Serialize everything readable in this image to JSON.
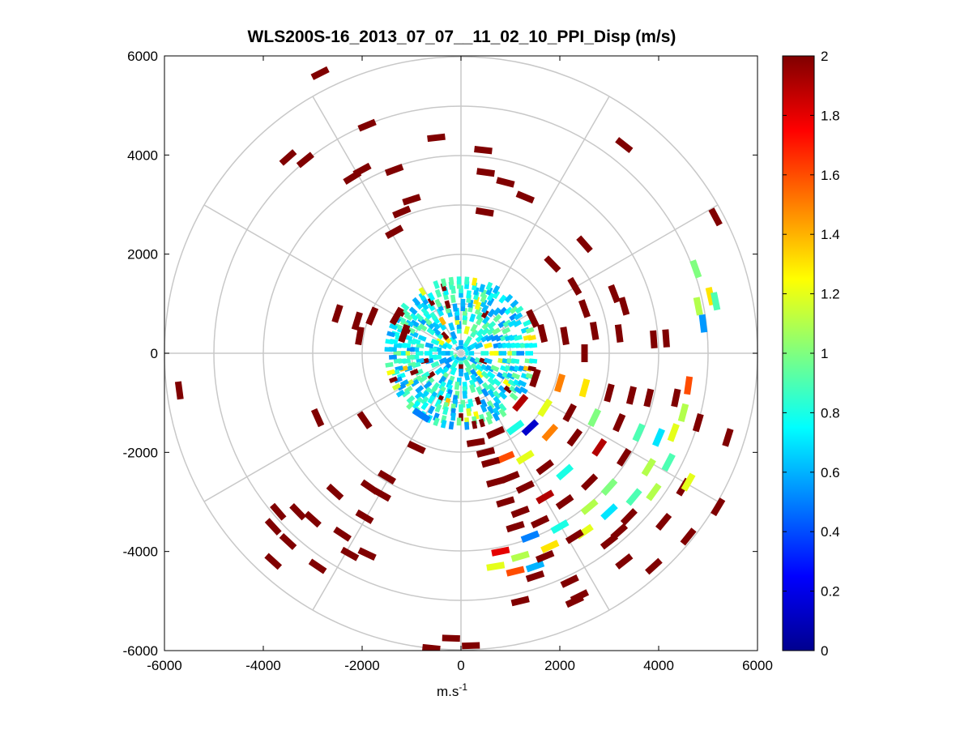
{
  "chart_data": {
    "type": "heatmap",
    "subtype": "polar-ppi",
    "title": "WLS200S-16_2013_07_07__11_02_10_PPI_Disp (m/s)",
    "xlabel_base": "m.s",
    "xlabel_exp": "-1",
    "ylabel": "",
    "xlim": [
      -6000,
      6000
    ],
    "ylim": [
      -6000,
      6000
    ],
    "xticks": [
      "-6000",
      "-4000",
      "-2000",
      "0",
      "2000",
      "4000",
      "6000"
    ],
    "yticks": [
      "6000",
      "4000",
      "2000",
      "0",
      "-2000",
      "-4000",
      "-6000"
    ],
    "xtick_values": [
      -6000,
      -4000,
      -2000,
      0,
      2000,
      4000,
      6000
    ],
    "ytick_values": [
      6000,
      4000,
      2000,
      0,
      -2000,
      -4000,
      -6000
    ],
    "polar_grid": {
      "range_rings": [
        1000,
        2000,
        3000,
        4000,
        5000,
        6000
      ],
      "radial_spokes_deg": [
        0,
        30,
        60,
        90,
        120,
        150,
        180,
        210,
        240,
        270,
        300,
        330
      ],
      "grid": "on"
    },
    "colorbar": {
      "min": 0,
      "max": 2,
      "ticks": [
        "2",
        "1.8",
        "1.6",
        "1.4",
        "1.2",
        "1",
        "0.8",
        "0.6",
        "0.4",
        "0.2",
        "0"
      ],
      "tick_values": [
        2,
        1.8,
        1.6,
        1.4,
        1.2,
        1,
        0.8,
        0.6,
        0.4,
        0.2,
        0
      ],
      "colormap": "jet",
      "placement": "right"
    },
    "cells": [
      {
        "x": -2850,
        "y": 5650,
        "v": 2
      },
      {
        "x": -1900,
        "y": 4600,
        "v": 2
      },
      {
        "x": -3500,
        "y": 3950,
        "v": 2
      },
      {
        "x": -3150,
        "y": 3900,
        "v": 2
      },
      {
        "x": -2000,
        "y": 3700,
        "v": 2
      },
      {
        "x": -2200,
        "y": 3550,
        "v": 2
      },
      {
        "x": -1350,
        "y": 3700,
        "v": 2
      },
      {
        "x": -1000,
        "y": 3100,
        "v": 2
      },
      {
        "x": -1200,
        "y": 2850,
        "v": 2
      },
      {
        "x": -1350,
        "y": 2450,
        "v": 2
      },
      {
        "x": -500,
        "y": 4350,
        "v": 2
      },
      {
        "x": 450,
        "y": 4100,
        "v": 2
      },
      {
        "x": 500,
        "y": 3650,
        "v": 2
      },
      {
        "x": 900,
        "y": 3450,
        "v": 2
      },
      {
        "x": 1300,
        "y": 3150,
        "v": 2
      },
      {
        "x": 480,
        "y": 2850,
        "v": 2
      },
      {
        "x": 3300,
        "y": 4200,
        "v": 2
      },
      {
        "x": 5150,
        "y": 2750,
        "v": 2
      },
      {
        "x": 2500,
        "y": 2200,
        "v": 2
      },
      {
        "x": 1850,
        "y": 1800,
        "v": 2
      },
      {
        "x": 2300,
        "y": 1350,
        "v": 2
      },
      {
        "x": 3100,
        "y": 1200,
        "v": 2
      },
      {
        "x": 3300,
        "y": 950,
        "v": 2
      },
      {
        "x": 2500,
        "y": 900,
        "v": 2
      },
      {
        "x": 1450,
        "y": 700,
        "v": 2
      },
      {
        "x": 1650,
        "y": 400,
        "v": 2
      },
      {
        "x": 2100,
        "y": 350,
        "v": 2
      },
      {
        "x": 2700,
        "y": 450,
        "v": 2
      },
      {
        "x": 3200,
        "y": 400,
        "v": 2
      },
      {
        "x": 3900,
        "y": 280,
        "v": 2
      },
      {
        "x": 4150,
        "y": 300,
        "v": 2
      },
      {
        "x": 2500,
        "y": 0,
        "v": 2
      },
      {
        "x": 4800,
        "y": 950,
        "v": 1.1
      },
      {
        "x": 4750,
        "y": 1700,
        "v": 1.0
      },
      {
        "x": 5050,
        "y": 1150,
        "v": 1.3
      },
      {
        "x": 4900,
        "y": 600,
        "v": 0.55
      },
      {
        "x": 5150,
        "y": 1050,
        "v": 0.9
      },
      {
        "x": -2500,
        "y": 800,
        "v": 2
      },
      {
        "x": -2100,
        "y": 650,
        "v": 2
      },
      {
        "x": -1800,
        "y": 750,
        "v": 2
      },
      {
        "x": -2050,
        "y": 350,
        "v": 2
      },
      {
        "x": -1300,
        "y": 750,
        "v": 2
      },
      {
        "x": -1150,
        "y": 400,
        "v": 2
      },
      {
        "x": -5700,
        "y": -750,
        "v": 2
      },
      {
        "x": -2900,
        "y": -1300,
        "v": 2
      },
      {
        "x": -1950,
        "y": -1350,
        "v": 2
      },
      {
        "x": -1500,
        "y": -2500,
        "v": 2
      },
      {
        "x": -1850,
        "y": -2700,
        "v": 2
      },
      {
        "x": -2550,
        "y": -2800,
        "v": 2
      },
      {
        "x": -3300,
        "y": -3200,
        "v": 2
      },
      {
        "x": -3000,
        "y": -3350,
        "v": 2
      },
      {
        "x": -3700,
        "y": -3200,
        "v": 2
      },
      {
        "x": -2400,
        "y": -3650,
        "v": 2
      },
      {
        "x": -1950,
        "y": -3300,
        "v": 2
      },
      {
        "x": -3800,
        "y": -3500,
        "v": 2
      },
      {
        "x": -3500,
        "y": -3800,
        "v": 2
      },
      {
        "x": -2900,
        "y": -4300,
        "v": 2
      },
      {
        "x": -3800,
        "y": -4200,
        "v": 2
      },
      {
        "x": -1900,
        "y": -4050,
        "v": 2
      },
      {
        "x": -2250,
        "y": -4050,
        "v": 2
      },
      {
        "x": -1600,
        "y": -2850,
        "v": 2
      },
      {
        "x": -800,
        "y": -1250,
        "v": 0.5
      },
      {
        "x": -900,
        "y": -1900,
        "v": 2
      },
      {
        "x": -200,
        "y": -5750,
        "v": 2
      },
      {
        "x": -600,
        "y": -5950,
        "v": 2
      },
      {
        "x": 200,
        "y": -5900,
        "v": 2
      },
      {
        "x": 1500,
        "y": -500,
        "v": 2
      },
      {
        "x": 2000,
        "y": -600,
        "v": 1.5
      },
      {
        "x": 2500,
        "y": -700,
        "v": 1.3
      },
      {
        "x": 3000,
        "y": -800,
        "v": 2
      },
      {
        "x": 3450,
        "y": -850,
        "v": 2
      },
      {
        "x": 3800,
        "y": -900,
        "v": 2
      },
      {
        "x": 4350,
        "y": -900,
        "v": 2
      },
      {
        "x": 4600,
        "y": -650,
        "v": 1.6
      },
      {
        "x": 1200,
        "y": -1000,
        "v": 1.9
      },
      {
        "x": 1700,
        "y": -1100,
        "v": 1.2
      },
      {
        "x": 2200,
        "y": -1200,
        "v": 2
      },
      {
        "x": 2700,
        "y": -1300,
        "v": 1.0
      },
      {
        "x": 3200,
        "y": -1400,
        "v": 2
      },
      {
        "x": 3600,
        "y": -1600,
        "v": 0.9
      },
      {
        "x": 4000,
        "y": -1700,
        "v": 0.7
      },
      {
        "x": 4300,
        "y": -1600,
        "v": 1.2
      },
      {
        "x": 4500,
        "y": -1200,
        "v": 1.1
      },
      {
        "x": 4800,
        "y": -1400,
        "v": 2
      },
      {
        "x": 5400,
        "y": -1700,
        "v": 2
      },
      {
        "x": 700,
        "y": -1600,
        "v": 2
      },
      {
        "x": 1100,
        "y": -1500,
        "v": 0.8
      },
      {
        "x": 1400,
        "y": -1500,
        "v": 0.15
      },
      {
        "x": 1800,
        "y": -1600,
        "v": 1.5
      },
      {
        "x": 2300,
        "y": -1700,
        "v": 2
      },
      {
        "x": 2800,
        "y": -1900,
        "v": 1.9
      },
      {
        "x": 3300,
        "y": -2100,
        "v": 2
      },
      {
        "x": 3800,
        "y": -2300,
        "v": 1.1
      },
      {
        "x": 4200,
        "y": -2200,
        "v": 0.9
      },
      {
        "x": 500,
        "y": -2000,
        "v": 2
      },
      {
        "x": 900,
        "y": -2100,
        "v": 1.6
      },
      {
        "x": 1300,
        "y": -2100,
        "v": 1.2
      },
      {
        "x": 1700,
        "y": -2300,
        "v": 2
      },
      {
        "x": 2100,
        "y": -2400,
        "v": 0.8
      },
      {
        "x": 2600,
        "y": -2600,
        "v": 2
      },
      {
        "x": 3000,
        "y": -2700,
        "v": 1.0
      },
      {
        "x": 3500,
        "y": -2900,
        "v": 0.9
      },
      {
        "x": 3900,
        "y": -2800,
        "v": 1.1
      },
      {
        "x": 4500,
        "y": -2700,
        "v": 2
      },
      {
        "x": 700,
        "y": -2600,
        "v": 2
      },
      {
        "x": 1000,
        "y": -2500,
        "v": 2
      },
      {
        "x": 1300,
        "y": -2700,
        "v": 2
      },
      {
        "x": 1700,
        "y": -2900,
        "v": 1.9
      },
      {
        "x": 2100,
        "y": -3000,
        "v": 2
      },
      {
        "x": 2600,
        "y": -3100,
        "v": 1.1
      },
      {
        "x": 3000,
        "y": -3200,
        "v": 0.7
      },
      {
        "x": 3400,
        "y": -3300,
        "v": 2
      },
      {
        "x": 900,
        "y": -3000,
        "v": 2
      },
      {
        "x": 1200,
        "y": -3200,
        "v": 2
      },
      {
        "x": 1600,
        "y": -3400,
        "v": 2
      },
      {
        "x": 2000,
        "y": -3500,
        "v": 0.8
      },
      {
        "x": 2500,
        "y": -3600,
        "v": 1.2
      },
      {
        "x": 3000,
        "y": -3800,
        "v": 2
      },
      {
        "x": 1100,
        "y": -3500,
        "v": 2
      },
      {
        "x": 1400,
        "y": -3700,
        "v": 0.5
      },
      {
        "x": 1800,
        "y": -3900,
        "v": 1.3
      },
      {
        "x": 2300,
        "y": -3700,
        "v": 2
      },
      {
        "x": 800,
        "y": -4000,
        "v": 1.8
      },
      {
        "x": 1200,
        "y": -4100,
        "v": 1.1
      },
      {
        "x": 1500,
        "y": -4300,
        "v": 0.6
      },
      {
        "x": 1700,
        "y": -4100,
        "v": 2
      },
      {
        "x": 700,
        "y": -4300,
        "v": 1.2
      },
      {
        "x": 1100,
        "y": -4400,
        "v": 1.6
      },
      {
        "x": 1500,
        "y": -4500,
        "v": 2
      },
      {
        "x": 2200,
        "y": -4600,
        "v": 2
      },
      {
        "x": 2400,
        "y": -4900,
        "v": 2
      },
      {
        "x": 2300,
        "y": -5000,
        "v": 2
      },
      {
        "x": 1200,
        "y": -5000,
        "v": 2
      },
      {
        "x": 3300,
        "y": -4200,
        "v": 2
      },
      {
        "x": 3900,
        "y": -4300,
        "v": 2
      },
      {
        "x": 4600,
        "y": -3700,
        "v": 2
      },
      {
        "x": 4100,
        "y": -3400,
        "v": 2
      },
      {
        "x": 5200,
        "y": -3100,
        "v": 2
      },
      {
        "x": 4600,
        "y": -2600,
        "v": 1.2
      },
      {
        "x": 3200,
        "y": -3600,
        "v": 2
      },
      {
        "x": 600,
        "y": -2200,
        "v": 2
      },
      {
        "x": 300,
        "y": -1800,
        "v": 2
      }
    ],
    "core": {
      "radius_m": 1500,
      "dominant_value": 0.75
    }
  }
}
